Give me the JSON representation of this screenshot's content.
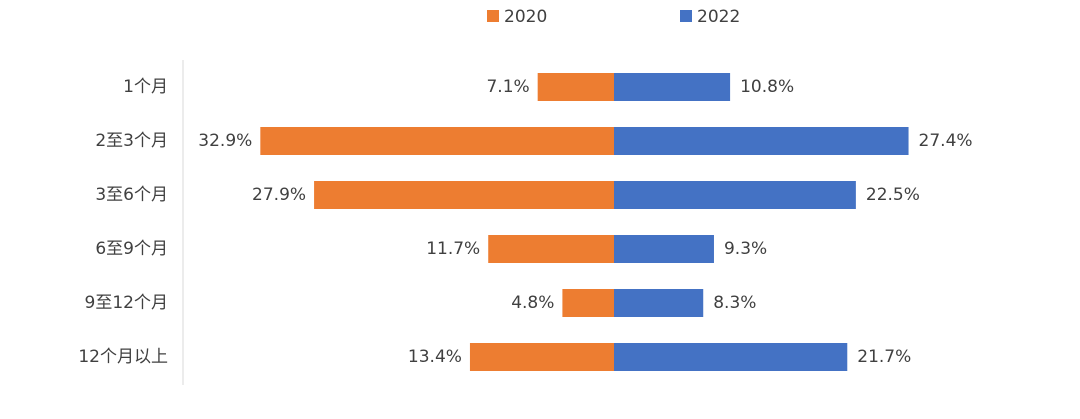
{
  "chart_data": {
    "type": "bar",
    "categories": [
      "1个月",
      "2至3个月",
      "3至6个月",
      "6至9个月",
      "9至12个月",
      "12个月以上"
    ],
    "series": [
      {
        "name": "2020",
        "color": "#ed7d31",
        "values": [
          7.1,
          32.9,
          27.9,
          11.7,
          4.8,
          13.4
        ],
        "value_labels": [
          "7.1%",
          "32.9%",
          "27.9%",
          "11.7%",
          "4.8%",
          "13.4%"
        ]
      },
      {
        "name": "2022",
        "color": "#4472c4",
        "values": [
          10.8,
          27.4,
          22.5,
          9.3,
          8.3,
          21.7
        ],
        "value_labels": [
          "10.8%",
          "27.4%",
          "22.5%",
          "9.3%",
          "8.3%",
          "21.7%"
        ]
      }
    ]
  }
}
